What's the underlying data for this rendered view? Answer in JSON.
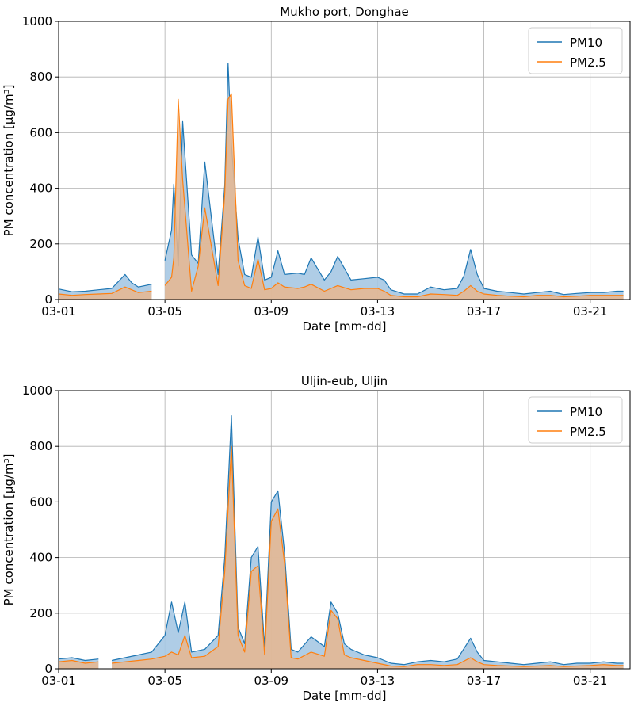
{
  "colors": {
    "pm10": "#1f77b4",
    "pm25": "#ff7f0e",
    "pm10_fill": "#a6c8e3",
    "pm25_fill": "#e8b68e",
    "grid": "#b0b0b0"
  },
  "chart_data": [
    {
      "type": "area",
      "title": "Mukho port, Donghae",
      "xlabel": "Date [mm-dd]",
      "ylabel": "PM concentration [µg/m³]",
      "xlim": [
        "03-01",
        "03-22"
      ],
      "ylim": [
        0,
        1000
      ],
      "grid": true,
      "legend": "top-right",
      "x_ticks": [
        "03-01",
        "03-05",
        "03-09",
        "03-13",
        "03-17",
        "03-21"
      ],
      "y_ticks": [
        0,
        200,
        400,
        600,
        800,
        1000
      ],
      "x": [
        "03-01 00:00",
        "03-01 12:00",
        "03-02 00:00",
        "03-02 12:00",
        "03-03 00:00",
        "03-03 12:00",
        "03-03 18:00",
        "03-04 00:00",
        "03-04 12:00",
        "03-04 18:00",
        "03-04 20:00",
        "03-05 00:00",
        "03-05 06:00",
        "03-05 08:00",
        "03-05 12:00",
        "03-05 16:00",
        "03-06 00:00",
        "03-06 06:00",
        "03-06 12:00",
        "03-07 00:00",
        "03-07 06:00",
        "03-07 09:00",
        "03-07 12:00",
        "03-07 18:00",
        "03-08 00:00",
        "03-08 06:00",
        "03-08 12:00",
        "03-08 18:00",
        "03-09 00:00",
        "03-09 06:00",
        "03-09 12:00",
        "03-10 00:00",
        "03-10 06:00",
        "03-10 12:00",
        "03-11 00:00",
        "03-11 06:00",
        "03-11 12:00",
        "03-12 00:00",
        "03-12 12:00",
        "03-13 00:00",
        "03-13 06:00",
        "03-13 12:00",
        "03-14 00:00",
        "03-14 12:00",
        "03-15 00:00",
        "03-15 12:00",
        "03-16 00:00",
        "03-16 06:00",
        "03-16 12:00",
        "03-16 18:00",
        "03-17 00:00",
        "03-17 12:00",
        "03-18 00:00",
        "03-18 12:00",
        "03-19 00:00",
        "03-19 12:00",
        "03-20 00:00",
        "03-20 12:00",
        "03-21 00:00",
        "03-21 12:00",
        "03-22 00:00",
        "03-22 06:00"
      ],
      "series": [
        {
          "name": "PM10",
          "values": [
            38,
            28,
            30,
            35,
            40,
            90,
            60,
            45,
            55,
            null,
            null,
            140,
            250,
            415,
            120,
            640,
            160,
            130,
            495,
            90,
            410,
            850,
            560,
            220,
            90,
            80,
            225,
            70,
            80,
            175,
            90,
            95,
            90,
            150,
            70,
            100,
            155,
            70,
            75,
            80,
            70,
            35,
            20,
            20,
            45,
            35,
            40,
            85,
            180,
            90,
            40,
            30,
            25,
            20,
            25,
            30,
            18,
            22,
            25,
            25,
            30,
            30
          ]
        },
        {
          "name": "PM2.5",
          "values": [
            20,
            15,
            18,
            20,
            22,
            45,
            35,
            25,
            30,
            null,
            null,
            50,
            80,
            150,
            720,
            430,
            30,
            120,
            330,
            50,
            380,
            720,
            740,
            140,
            50,
            40,
            145,
            35,
            40,
            60,
            45,
            40,
            45,
            55,
            30,
            40,
            50,
            35,
            40,
            40,
            30,
            15,
            10,
            10,
            20,
            18,
            15,
            30,
            50,
            30,
            20,
            15,
            12,
            10,
            15,
            15,
            10,
            12,
            15,
            15,
            15,
            15
          ]
        }
      ]
    },
    {
      "type": "area",
      "title": "Uljin-eub, Uljin",
      "xlabel": "Date [mm-dd]",
      "ylabel": "PM concentration [µg/m³]",
      "xlim": [
        "03-01",
        "03-22"
      ],
      "ylim": [
        0,
        1000
      ],
      "grid": true,
      "legend": "top-right",
      "x_ticks": [
        "03-01",
        "03-05",
        "03-09",
        "03-13",
        "03-17",
        "03-21"
      ],
      "y_ticks": [
        0,
        200,
        400,
        600,
        800,
        1000
      ],
      "x": [
        "03-01 00:00",
        "03-01 12:00",
        "03-02 00:00",
        "03-02 12:00",
        "03-02 18:00",
        "03-03 00:00",
        "03-03 12:00",
        "03-04 00:00",
        "03-04 12:00",
        "03-05 00:00",
        "03-05 06:00",
        "03-05 12:00",
        "03-05 18:00",
        "03-06 00:00",
        "03-06 12:00",
        "03-07 00:00",
        "03-07 06:00",
        "03-07 12:00",
        "03-07 18:00",
        "03-08 00:00",
        "03-08 06:00",
        "03-08 12:00",
        "03-08 18:00",
        "03-09 00:00",
        "03-09 06:00",
        "03-09 12:00",
        "03-09 18:00",
        "03-10 00:00",
        "03-10 12:00",
        "03-11 00:00",
        "03-11 06:00",
        "03-11 12:00",
        "03-11 18:00",
        "03-12 00:00",
        "03-12 12:00",
        "03-13 00:00",
        "03-13 12:00",
        "03-14 00:00",
        "03-14 12:00",
        "03-15 00:00",
        "03-15 12:00",
        "03-16 00:00",
        "03-16 12:00",
        "03-16 18:00",
        "03-17 00:00",
        "03-17 12:00",
        "03-18 00:00",
        "03-18 12:00",
        "03-19 00:00",
        "03-19 12:00",
        "03-20 00:00",
        "03-20 12:00",
        "03-21 00:00",
        "03-21 12:00",
        "03-22 00:00",
        "03-22 06:00"
      ],
      "series": [
        {
          "name": "PM10",
          "values": [
            35,
            40,
            30,
            35,
            null,
            30,
            40,
            50,
            60,
            120,
            240,
            130,
            240,
            60,
            70,
            120,
            400,
            910,
            150,
            90,
            400,
            440,
            80,
            600,
            640,
            420,
            70,
            60,
            115,
            80,
            240,
            200,
            90,
            70,
            50,
            40,
            20,
            15,
            25,
            30,
            25,
            35,
            110,
            60,
            30,
            25,
            20,
            15,
            20,
            25,
            15,
            20,
            20,
            25,
            20,
            20
          ]
        },
        {
          "name": "PM2.5",
          "values": [
            25,
            30,
            20,
            25,
            null,
            20,
            25,
            30,
            35,
            45,
            60,
            50,
            120,
            40,
            45,
            80,
            350,
            800,
            120,
            60,
            350,
            370,
            50,
            530,
            575,
            380,
            40,
            35,
            60,
            45,
            210,
            180,
            50,
            40,
            30,
            20,
            10,
            8,
            15,
            15,
            12,
            15,
            40,
            25,
            15,
            12,
            10,
            8,
            10,
            12,
            8,
            10,
            12,
            15,
            12,
            12
          ]
        }
      ]
    }
  ]
}
